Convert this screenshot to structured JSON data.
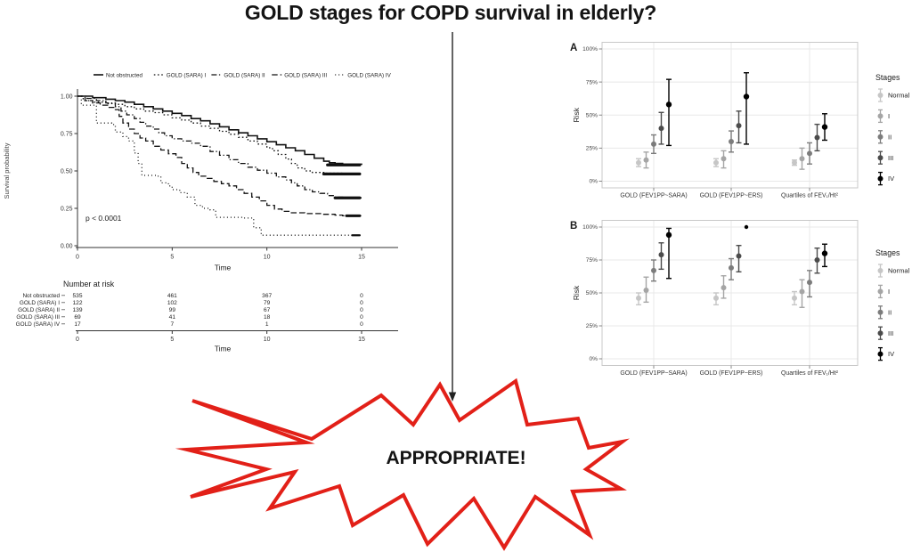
{
  "title": "GOLD stages for COPD survival in elderly?",
  "burst_text": "APPROPRIATE!",
  "colors": {
    "accent_red": "#e22018",
    "text": "#1a1a1a",
    "grid": "#e8e8e8",
    "panel_border": "#c8c8c8",
    "stages": [
      "#c6c6c6",
      "#a5a5a5",
      "#7c7c7c",
      "#4b4b4b",
      "#000000"
    ]
  },
  "chart_data": [
    {
      "id": "km_survival",
      "type": "line",
      "xlabel": "Time",
      "ylabel": "Survival probability",
      "xlim": [
        0,
        15
      ],
      "ylim": [
        0,
        1
      ],
      "xticks": [
        0,
        5,
        10,
        15
      ],
      "yticks": [
        1.0,
        0.75,
        0.5,
        0.25,
        0.0
      ],
      "ytick_labels": [
        "1.00",
        "0.75",
        "0.50",
        "0.25",
        "0.00"
      ],
      "annotation": "p < 0.0001",
      "legend_position": "top",
      "series": [
        {
          "name": "Not obstructed",
          "linestyle": "solid",
          "steps": [
            [
              0,
              1.0
            ],
            [
              0.8,
              0.99
            ],
            [
              1.5,
              0.98
            ],
            [
              2,
              0.97
            ],
            [
              2.5,
              0.96
            ],
            [
              3,
              0.945
            ],
            [
              3.5,
              0.93
            ],
            [
              4,
              0.915
            ],
            [
              4.5,
              0.9
            ],
            [
              5,
              0.885
            ],
            [
              5.5,
              0.87
            ],
            [
              6,
              0.85
            ],
            [
              6.5,
              0.835
            ],
            [
              7,
              0.815
            ],
            [
              7.5,
              0.795
            ],
            [
              8,
              0.775
            ],
            [
              8.5,
              0.755
            ],
            [
              9,
              0.735
            ],
            [
              9.5,
              0.715
            ],
            [
              10,
              0.695
            ],
            [
              10.5,
              0.675
            ],
            [
              11,
              0.655
            ],
            [
              11.5,
              0.635
            ],
            [
              12,
              0.61
            ],
            [
              12.5,
              0.585
            ],
            [
              13,
              0.565
            ],
            [
              13.3,
              0.555
            ],
            [
              13.6,
              0.55
            ],
            [
              14,
              0.545
            ],
            [
              15,
              0.54
            ]
          ]
        },
        {
          "name": "GOLD (SARA) I",
          "linestyle": "dotted",
          "steps": [
            [
              0,
              1.0
            ],
            [
              0.3,
              0.97
            ],
            [
              0.8,
              0.96
            ],
            [
              1.5,
              0.95
            ],
            [
              2,
              0.945
            ],
            [
              2.5,
              0.93
            ],
            [
              3,
              0.915
            ],
            [
              3.5,
              0.9
            ],
            [
              4,
              0.89
            ],
            [
              4.5,
              0.875
            ],
            [
              5,
              0.855
            ],
            [
              5.5,
              0.84
            ],
            [
              6,
              0.82
            ],
            [
              6.5,
              0.8
            ],
            [
              7,
              0.785
            ],
            [
              7.5,
              0.765
            ],
            [
              8,
              0.745
            ],
            [
              8.5,
              0.725
            ],
            [
              9,
              0.7
            ],
            [
              9.5,
              0.68
            ],
            [
              10,
              0.655
            ],
            [
              10.3,
              0.635
            ],
            [
              10.6,
              0.61
            ],
            [
              11,
              0.58
            ],
            [
              11.3,
              0.55
            ],
            [
              11.6,
              0.52
            ],
            [
              12,
              0.5
            ],
            [
              12.4,
              0.49
            ],
            [
              13,
              0.485
            ],
            [
              14,
              0.48
            ],
            [
              15,
              0.48
            ]
          ]
        },
        {
          "name": "GOLD (SARA) II",
          "linestyle": "dashdot",
          "steps": [
            [
              0,
              1.0
            ],
            [
              0.5,
              0.985
            ],
            [
              1,
              0.97
            ],
            [
              1.5,
              0.955
            ],
            [
              2,
              0.93
            ],
            [
              2.3,
              0.9
            ],
            [
              2.6,
              0.875
            ],
            [
              3,
              0.85
            ],
            [
              3.3,
              0.825
            ],
            [
              3.6,
              0.8
            ],
            [
              4,
              0.78
            ],
            [
              4.3,
              0.755
            ],
            [
              4.6,
              0.735
            ],
            [
              5,
              0.715
            ],
            [
              5.5,
              0.7
            ],
            [
              6,
              0.685
            ],
            [
              6.5,
              0.665
            ],
            [
              7,
              0.63
            ],
            [
              7.5,
              0.605
            ],
            [
              8,
              0.575
            ],
            [
              8.5,
              0.55
            ],
            [
              9,
              0.525
            ],
            [
              9.5,
              0.505
            ],
            [
              10,
              0.485
            ],
            [
              10.5,
              0.46
            ],
            [
              11,
              0.44
            ],
            [
              11.3,
              0.42
            ],
            [
              11.6,
              0.4
            ],
            [
              12,
              0.375
            ],
            [
              12.4,
              0.36
            ],
            [
              12.8,
              0.35
            ],
            [
              13.2,
              0.335
            ],
            [
              13.6,
              0.325
            ],
            [
              14,
              0.32
            ],
            [
              15,
              0.32
            ]
          ]
        },
        {
          "name": "GOLD (SARA) III",
          "linestyle": "dashed",
          "steps": [
            [
              0,
              1.0
            ],
            [
              0.4,
              0.97
            ],
            [
              0.8,
              0.955
            ],
            [
              1.2,
              0.94
            ],
            [
              1.6,
              0.925
            ],
            [
              2,
              0.91
            ],
            [
              2.2,
              0.865
            ],
            [
              2.4,
              0.82
            ],
            [
              2.7,
              0.78
            ],
            [
              3,
              0.75
            ],
            [
              3.3,
              0.72
            ],
            [
              3.6,
              0.7
            ],
            [
              4,
              0.665
            ],
            [
              4.4,
              0.64
            ],
            [
              4.8,
              0.615
            ],
            [
              5.2,
              0.59
            ],
            [
              5.5,
              0.55
            ],
            [
              5.8,
              0.52
            ],
            [
              6.1,
              0.49
            ],
            [
              6.4,
              0.465
            ],
            [
              6.8,
              0.45
            ],
            [
              7.2,
              0.43
            ],
            [
              7.6,
              0.415
            ],
            [
              8,
              0.4
            ],
            [
              8.4,
              0.375
            ],
            [
              8.8,
              0.35
            ],
            [
              9.2,
              0.325
            ],
            [
              9.6,
              0.3
            ],
            [
              10,
              0.27
            ],
            [
              10.4,
              0.245
            ],
            [
              10.8,
              0.23
            ],
            [
              11.2,
              0.22
            ],
            [
              12,
              0.215
            ],
            [
              13,
              0.21
            ],
            [
              13.6,
              0.205
            ],
            [
              14,
              0.2
            ],
            [
              15,
              0.2
            ]
          ]
        },
        {
          "name": "GOLD (SARA) IV",
          "linestyle": "dotted-fine",
          "steps": [
            [
              0,
              1.0
            ],
            [
              0.2,
              0.94
            ],
            [
              0.9,
              0.94
            ],
            [
              1,
              0.82
            ],
            [
              1.8,
              0.81
            ],
            [
              2,
              0.76
            ],
            [
              2.4,
              0.73
            ],
            [
              2.7,
              0.7
            ],
            [
              3,
              0.62
            ],
            [
              3.2,
              0.55
            ],
            [
              3.4,
              0.47
            ],
            [
              4.2,
              0.465
            ],
            [
              4.4,
              0.42
            ],
            [
              4.8,
              0.4
            ],
            [
              5,
              0.375
            ],
            [
              5.4,
              0.355
            ],
            [
              5.8,
              0.325
            ],
            [
              6.2,
              0.27
            ],
            [
              6.6,
              0.25
            ],
            [
              7,
              0.24
            ],
            [
              7.3,
              0.19
            ],
            [
              8.8,
              0.185
            ],
            [
              9.3,
              0.12
            ],
            [
              9.7,
              0.07
            ],
            [
              15,
              0.07
            ]
          ]
        }
      ],
      "risk_table": {
        "title": "Number at risk",
        "xlabel": "Time",
        "time_points": [
          0,
          5,
          10,
          15
        ],
        "rows": [
          {
            "label": "Not obstructed",
            "values": [
              535,
              461,
              367,
              0
            ]
          },
          {
            "label": "GOLD (SARA) I",
            "values": [
              122,
              102,
              79,
              0
            ]
          },
          {
            "label": "GOLD (SARA) II",
            "values": [
              139,
              99,
              67,
              0
            ]
          },
          {
            "label": "GOLD (SARA) III",
            "values": [
              69,
              41,
              18,
              0
            ]
          },
          {
            "label": "GOLD (SARA) IV",
            "values": [
              17,
              7,
              1,
              0
            ]
          }
        ]
      }
    },
    {
      "id": "risk_panel_A",
      "type": "scatter",
      "panel_label": "A",
      "ylabel": "Risk",
      "ylim": [
        0,
        100
      ],
      "yticks": [
        0,
        25,
        50,
        75,
        100
      ],
      "ytick_labels": [
        "0%",
        "25%",
        "50%",
        "75%",
        "100%"
      ],
      "legend_title": "Stages",
      "stages": [
        "Normal",
        "I",
        "II",
        "III",
        "IV"
      ],
      "groups": [
        {
          "label": "GOLD (FEV1PP~SARA)",
          "estimates": [
            14,
            16,
            28,
            40,
            58
          ],
          "ci_low": [
            11,
            10,
            21,
            28,
            27
          ],
          "ci_high": [
            17,
            22,
            35,
            52,
            77
          ]
        },
        {
          "label": "GOLD (FEV1PP~ERS)",
          "estimates": [
            14,
            17,
            30,
            42,
            64
          ],
          "ci_low": [
            11,
            10,
            22,
            29,
            28
          ],
          "ci_high": [
            17,
            23,
            38,
            53,
            82
          ]
        },
        {
          "label": "Quartiles of FEV₁/Ht²",
          "estimates": [
            14,
            17,
            21,
            33,
            41
          ],
          "ci_low": [
            12,
            9,
            13,
            23,
            31
          ],
          "ci_high": [
            16,
            25,
            29,
            43,
            51
          ]
        }
      ]
    },
    {
      "id": "risk_panel_B",
      "type": "scatter",
      "panel_label": "B",
      "ylabel": "Risk",
      "ylim": [
        0,
        100
      ],
      "yticks": [
        0,
        25,
        50,
        75,
        100
      ],
      "ytick_labels": [
        "0%",
        "25%",
        "50%",
        "75%",
        "100%"
      ],
      "legend_title": "Stages",
      "stages": [
        "Normal",
        "I",
        "II",
        "III",
        "IV"
      ],
      "groups": [
        {
          "label": "GOLD (FEV1PP~SARA)",
          "estimates": [
            46,
            52,
            67,
            79,
            94
          ],
          "ci_low": [
            41,
            43,
            59,
            68,
            61
          ],
          "ci_high": [
            50,
            62,
            75,
            88,
            99
          ]
        },
        {
          "label": "GOLD (FEV1PP~ERS)",
          "estimates": [
            46,
            54,
            69,
            78,
            100
          ],
          "ci_low": [
            41,
            46,
            60,
            66,
            null
          ],
          "ci_high": [
            50,
            63,
            76,
            86,
            null
          ]
        },
        {
          "label": "Quartiles of FEV₁/Ht²",
          "estimates": [
            46,
            51,
            58,
            75,
            80
          ],
          "ci_low": [
            41,
            39,
            47,
            65,
            70
          ],
          "ci_high": [
            51,
            60,
            67,
            84,
            87
          ]
        }
      ]
    }
  ]
}
